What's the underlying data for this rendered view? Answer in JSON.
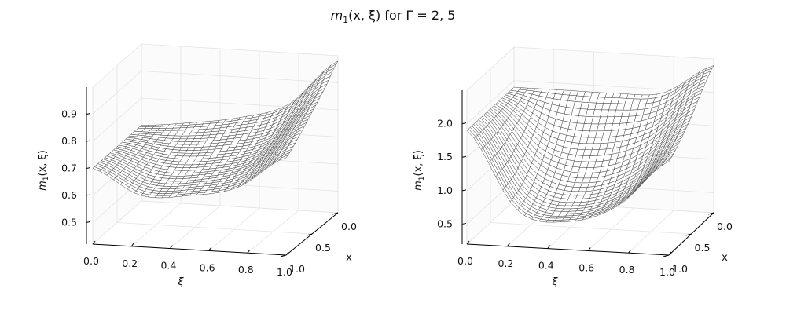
{
  "figure": {
    "title": {
      "prefix": "m",
      "sub": "1",
      "args": "(x, ξ) for Γ = 2, 5"
    }
  },
  "chart_data": [
    {
      "type": "surface",
      "title": "",
      "xlabel": "ξ",
      "ylabel": "x",
      "zlabel": {
        "prefix": "m",
        "sub": "1",
        "args": "(x, ξ)"
      },
      "xlim": [
        0,
        1
      ],
      "ylim": [
        0,
        1
      ],
      "zlim": [
        0.42,
        1.0
      ],
      "xticks": [
        "0.0",
        "0.2",
        "0.4",
        "0.6",
        "0.8",
        "1.0"
      ],
      "yticks": [
        "0.0",
        "0.5",
        "1.0"
      ],
      "zticks": [
        {
          "value": 0.5,
          "label": "0.5"
        },
        {
          "value": 0.6,
          "label": "0.6"
        },
        {
          "value": 0.7,
          "label": "0.7"
        },
        {
          "value": 0.8,
          "label": "0.8"
        },
        {
          "value": 0.9,
          "label": "0.9"
        }
      ],
      "grid": true,
      "surface": {
        "xi": [
          0.0,
          0.25,
          0.5,
          0.75,
          1.0
        ],
        "x": [
          0.0,
          0.25,
          0.5,
          0.75,
          1.0
        ],
        "z": [
          [
            0.7,
            0.72,
            0.75,
            0.81,
            0.98
          ],
          [
            0.7,
            0.69,
            0.71,
            0.76,
            0.92
          ],
          [
            0.7,
            0.66,
            0.67,
            0.72,
            0.87
          ],
          [
            0.7,
            0.63,
            0.64,
            0.69,
            0.82
          ],
          [
            0.7,
            0.61,
            0.62,
            0.66,
            0.78
          ]
        ]
      }
    },
    {
      "type": "surface",
      "title": "",
      "xlabel": "ξ",
      "ylabel": "x",
      "zlabel": {
        "prefix": "m",
        "sub": "1",
        "args": "(x, ξ)"
      },
      "xlim": [
        0,
        1
      ],
      "ylim": [
        0,
        1
      ],
      "zlim": [
        0.2,
        2.5
      ],
      "xticks": [
        "0.0",
        "0.2",
        "0.4",
        "0.6",
        "0.8",
        "1.0"
      ],
      "yticks": [
        "0.0",
        "0.5",
        "1.0"
      ],
      "zticks": [
        {
          "value": 0.5,
          "label": "0.5"
        },
        {
          "value": 1.0,
          "label": "1.0"
        },
        {
          "value": 1.5,
          "label": "1.5"
        },
        {
          "value": 2.0,
          "label": "2.0"
        }
      ],
      "grid": true,
      "surface": {
        "xi": [
          0.0,
          0.25,
          0.5,
          0.75,
          1.0
        ],
        "x": [
          0.0,
          0.25,
          0.5,
          0.75,
          1.0
        ],
        "z": [
          [
            1.9,
            1.9,
            1.9,
            1.95,
            2.4
          ],
          [
            1.9,
            1.45,
            1.4,
            1.6,
            2.2
          ],
          [
            1.9,
            1.1,
            0.95,
            1.25,
            1.95
          ],
          [
            1.9,
            0.85,
            0.7,
            1.0,
            1.75
          ],
          [
            1.9,
            0.75,
            0.62,
            0.9,
            1.6
          ]
        ]
      }
    }
  ]
}
